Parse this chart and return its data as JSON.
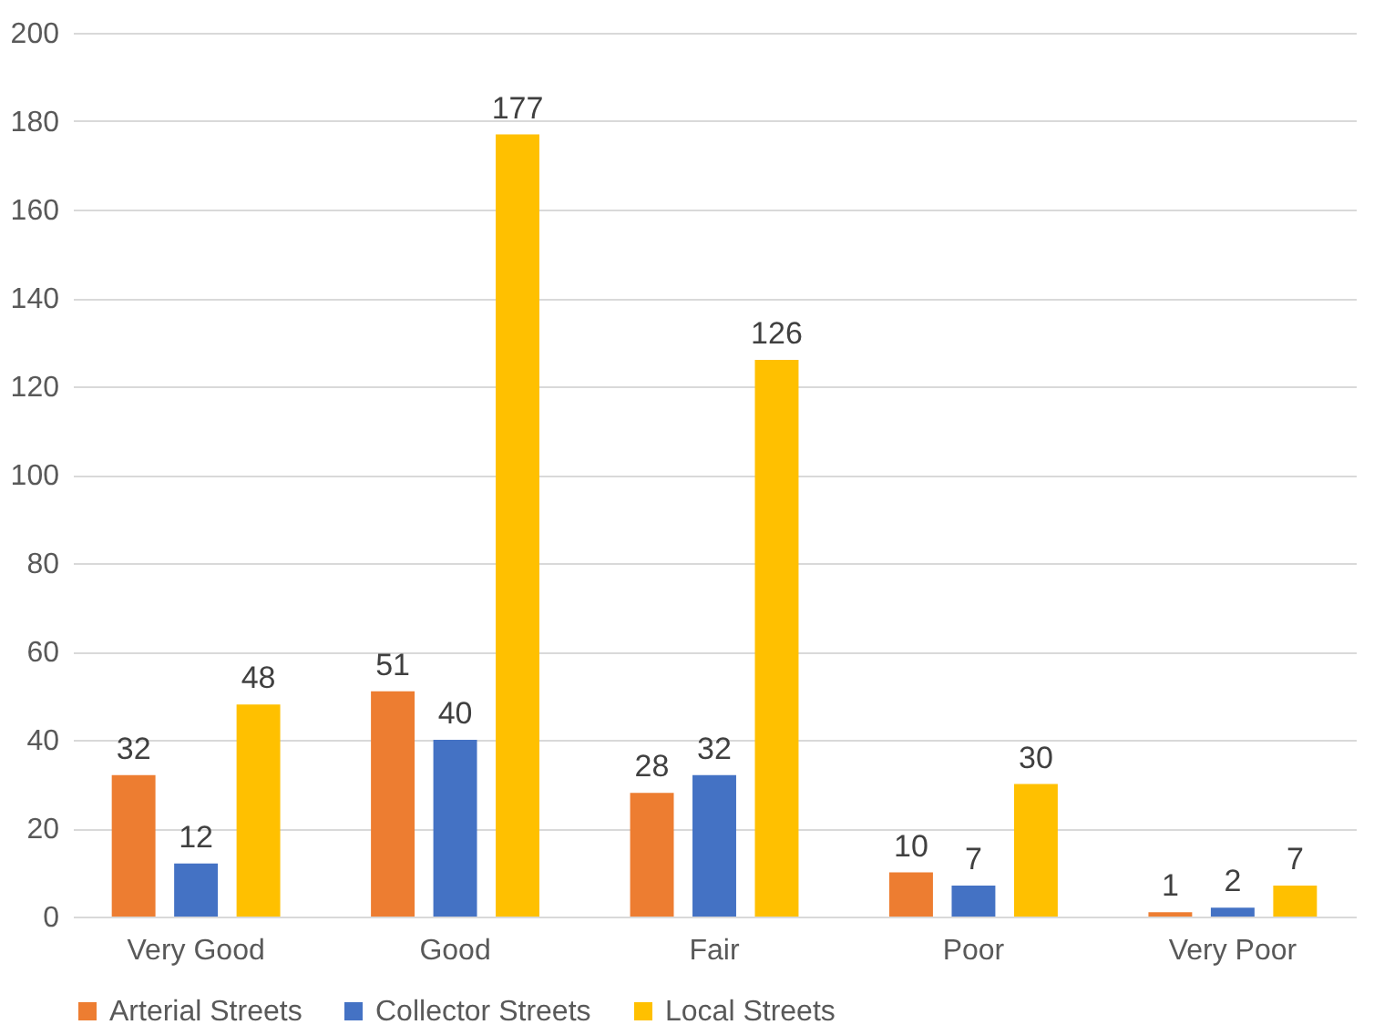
{
  "chart_data": {
    "type": "bar",
    "categories": [
      "Very Good",
      "Good",
      "Fair",
      "Poor",
      "Very Poor"
    ],
    "series": [
      {
        "name": "Arterial Streets",
        "color": "#ed7d31",
        "values": [
          32,
          51,
          28,
          10,
          1
        ]
      },
      {
        "name": "Collector Streets",
        "color": "#4472c4",
        "values": [
          12,
          40,
          32,
          7,
          2
        ]
      },
      {
        "name": "Local Streets",
        "color": "#ffc000",
        "values": [
          48,
          177,
          126,
          30,
          7
        ]
      }
    ],
    "ylim": [
      0,
      200
    ],
    "yticks": [
      0,
      20,
      40,
      60,
      80,
      100,
      120,
      140,
      160,
      180,
      200
    ],
    "grid": "y",
    "legend": "bottom",
    "data_labels": true
  }
}
